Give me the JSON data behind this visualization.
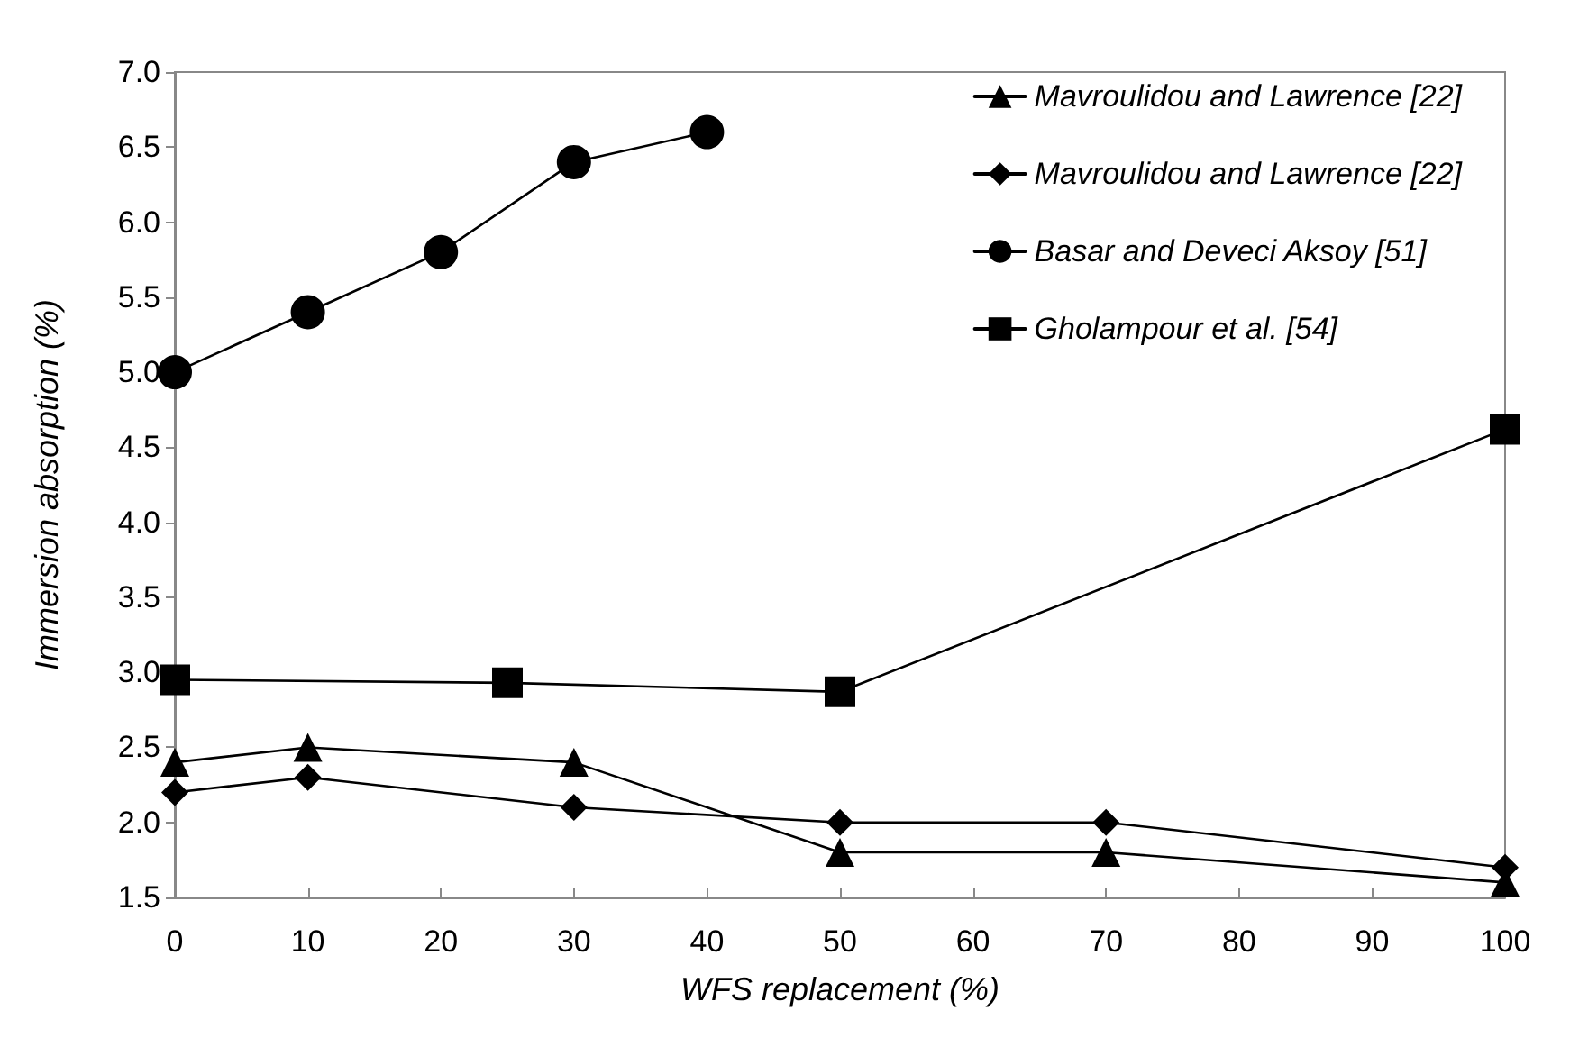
{
  "chart_data": {
    "type": "line",
    "xlabel": "WFS replacement (%)",
    "ylabel": "Immersion absorption (%)",
    "xlim": [
      0,
      100
    ],
    "xticks": [
      0,
      10,
      20,
      30,
      40,
      50,
      60,
      70,
      80,
      90,
      100
    ],
    "ylim": [
      1.5,
      7
    ],
    "yticks": [
      1.5,
      {
        "value": 2,
        "label": "2.0"
      },
      2.5,
      {
        "value": 3,
        "label": "3.0"
      },
      3.5,
      {
        "value": 4,
        "label": "4.0"
      },
      4.5,
      {
        "value": 5,
        "label": "5.0"
      },
      5.5,
      {
        "value": 6,
        "label": "6.0"
      },
      6.5,
      {
        "value": 7,
        "label": "7.0"
      }
    ],
    "grid": false,
    "legend": "top right",
    "line_style": "solid",
    "series": [
      {
        "name": "Mavroulidou and Lawrence [22]",
        "color": "#000000",
        "marker": "triangle",
        "x": [
          0,
          10,
          30,
          50,
          70,
          100
        ],
        "values": [
          2.4,
          2.5,
          2.4,
          1.8,
          1.8,
          1.6
        ]
      },
      {
        "name": "Mavroulidou and Lawrence [22]",
        "color": "#000000",
        "marker": "diamond",
        "x": [
          0,
          10,
          30,
          50,
          70,
          100
        ],
        "values": [
          2.2,
          2.3,
          2.1,
          2.0,
          2.0,
          1.7
        ]
      },
      {
        "name": "Basar and Deveci Aksoy [51]",
        "color": "#000000",
        "marker": "circle",
        "x": [
          0,
          10,
          20,
          30,
          40
        ],
        "values": [
          5.0,
          5.4,
          5.8,
          6.4,
          6.6
        ]
      },
      {
        "name": "Gholampour et al. [54]",
        "color": "#000000",
        "marker": "square",
        "x": [
          0,
          25,
          50,
          100
        ],
        "values": [
          2.95,
          2.93,
          2.87,
          4.62
        ]
      }
    ]
  }
}
